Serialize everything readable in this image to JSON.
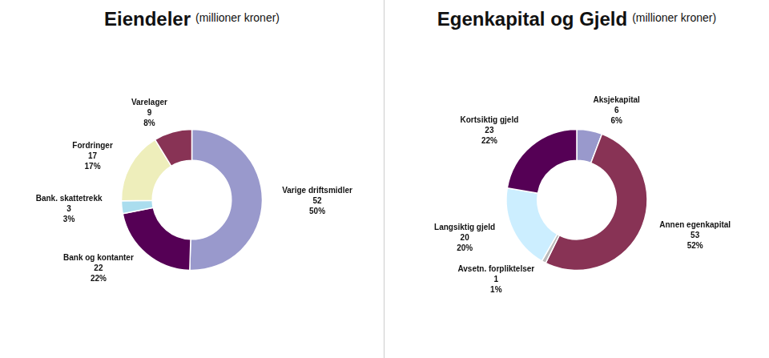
{
  "chart_data": [
    {
      "type": "doughnut",
      "title": "Eiendeler",
      "subtitle": "(millioner kroner)",
      "categories": [
        "Varige driftsmidler\n52\n50%",
        "Bank og kontanter\n22\n22%",
        "Bank. skattetrekk\n3\n3%",
        "Fordringer\n17\n17%",
        "Varelager\n9\n8%"
      ],
      "values": [
        52,
        22,
        3,
        17,
        9
      ],
      "colors": [
        "#9999cc",
        "#550055",
        "#aaddee",
        "#eeeebb",
        "#883355"
      ]
    },
    {
      "type": "doughnut",
      "title": "Egenkapital og Gjeld",
      "subtitle": "(millioner kroner)",
      "categories": [
        "Aksjekapital\n6\n6%",
        "Annen egenkapital\n53\n52%",
        "Avsetn. forpliktelser\n1\n1%",
        "Langsiktig gjeld\n20\n20%",
        "Kortsiktig gjeld\n23\n22%"
      ],
      "values": [
        6,
        53,
        1,
        20,
        23
      ],
      "colors": [
        "#9999cc",
        "#883355",
        "#bbbbbb",
        "#cceeff",
        "#550055"
      ]
    }
  ]
}
